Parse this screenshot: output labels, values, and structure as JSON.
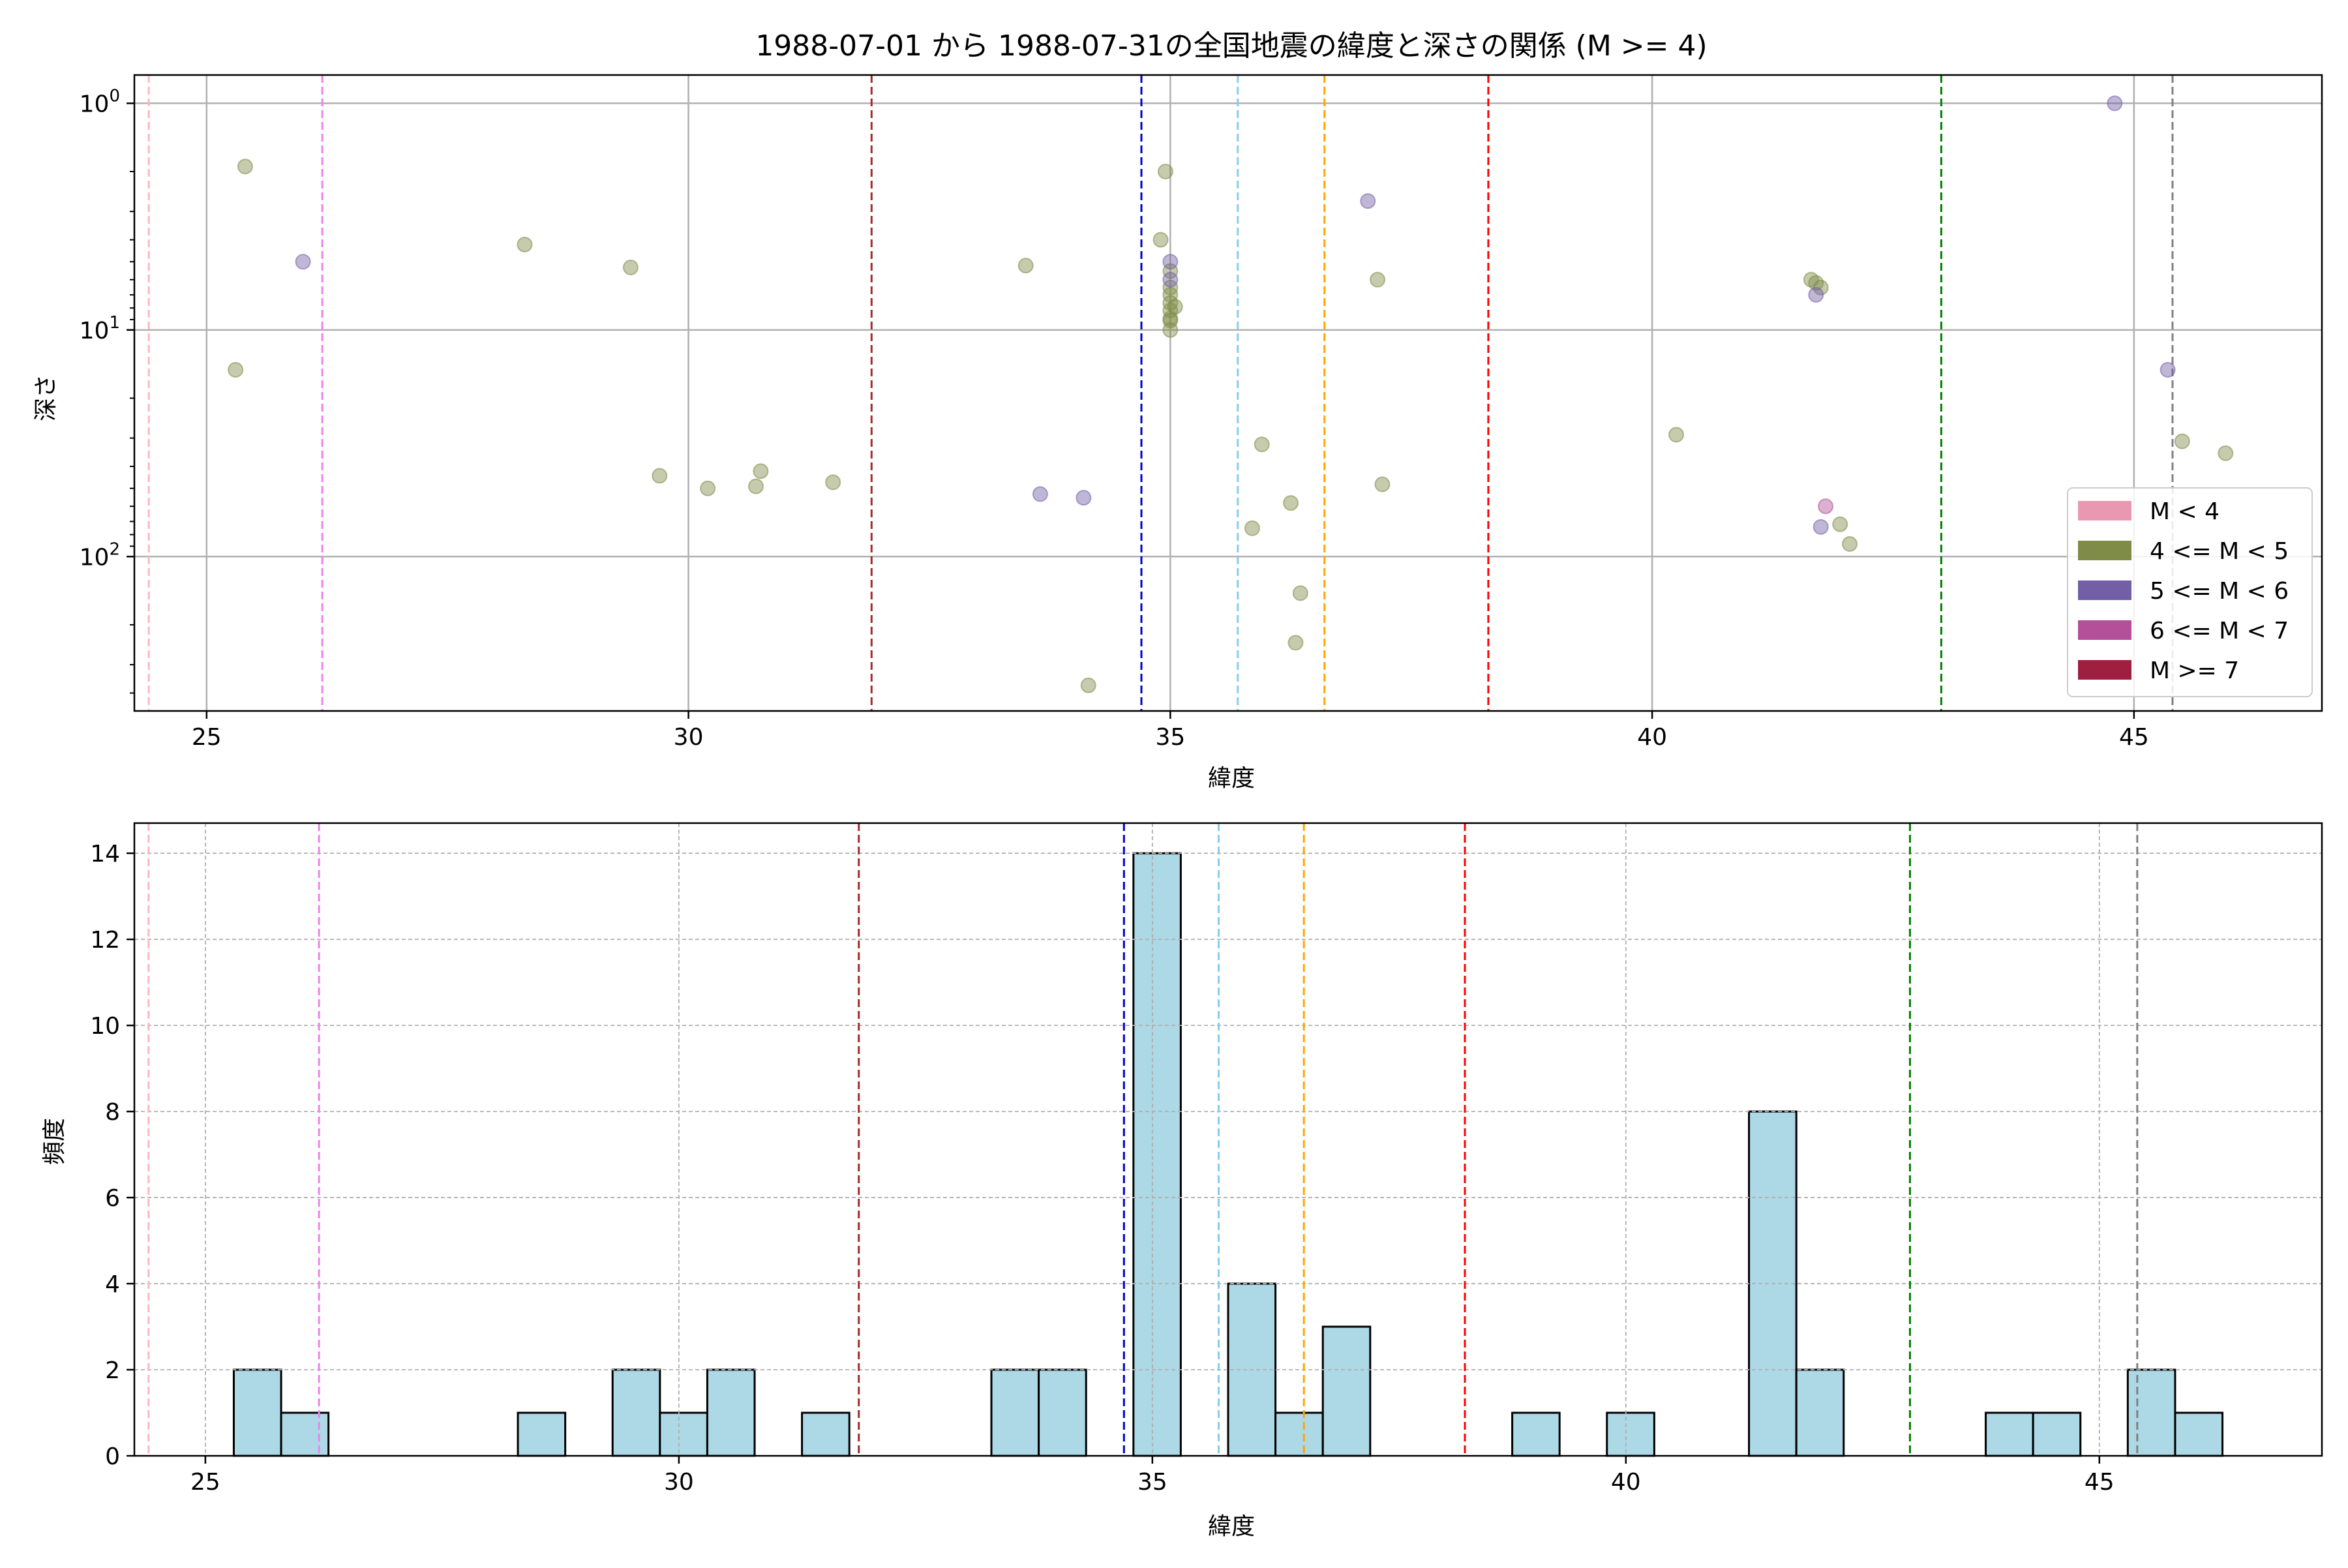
{
  "figure": {
    "title": "1988-07-01 から 1988-07-31の全国地震の緯度と深さの関係 (M >= 4)"
  },
  "legend_items": [
    {
      "label": "M < 4",
      "color": "#e899b1"
    },
    {
      "label": "4 <= M < 5",
      "color": "#7e8c48"
    },
    {
      "label": "5 <= M < 6",
      "color": "#735fa6"
    },
    {
      "label": "6 <= M < 7",
      "color": "#b44f99"
    },
    {
      "label": "M >= 7",
      "color": "#9e1f40"
    }
  ],
  "vlines": [
    {
      "x": 24.4,
      "color": "#ffb6c1"
    },
    {
      "x": 26.2,
      "color": "#ee82ee"
    },
    {
      "x": 31.9,
      "color": "#a52a2a"
    },
    {
      "x": 34.7,
      "color": "#0000cd"
    },
    {
      "x": 35.7,
      "color": "#87ceeb"
    },
    {
      "x": 36.6,
      "color": "#ffa500"
    },
    {
      "x": 38.3,
      "color": "#ff0000"
    },
    {
      "x": 43.0,
      "color": "#008000"
    },
    {
      "x": 45.4,
      "color": "#808080"
    }
  ],
  "chart_data": [
    {
      "type": "scatter",
      "title": "1988-07-01 から 1988-07-31の全国地震の緯度と深さの関係 (M >= 4)",
      "xlabel": "緯度",
      "ylabel": "深さ",
      "xlim": [
        24.25,
        46.95
      ],
      "ylim": [
        480,
        0.75
      ],
      "yscale": "log",
      "y_inverted": true,
      "xticks": [
        25,
        30,
        35,
        40,
        45
      ],
      "yticks": [
        1,
        10,
        100
      ],
      "ytick_labels": [
        "10^0",
        "10^1",
        "10^2"
      ],
      "grid": true,
      "legend_position": "lower right",
      "series": [
        {
          "name": "4 <= M < 5",
          "color": "#7e8c48",
          "points": [
            [
              25.4,
              1.9
            ],
            [
              25.3,
              15
            ],
            [
              28.3,
              4.2
            ],
            [
              29.4,
              5.3
            ],
            [
              29.7,
              44
            ],
            [
              30.2,
              50
            ],
            [
              30.7,
              49
            ],
            [
              30.75,
              42
            ],
            [
              31.5,
              47
            ],
            [
              33.5,
              5.2
            ],
            [
              34.15,
              370
            ],
            [
              34.9,
              4
            ],
            [
              34.95,
              2
            ],
            [
              35.0,
              5.5
            ],
            [
              35.0,
              6.5
            ],
            [
              35.0,
              7
            ],
            [
              35.0,
              7.6
            ],
            [
              35.0,
              8.2
            ],
            [
              35.0,
              8.9
            ],
            [
              35.05,
              7.9
            ],
            [
              35.0,
              9.1
            ],
            [
              35.0,
              10
            ],
            [
              35.85,
              75
            ],
            [
              35.95,
              32
            ],
            [
              36.25,
              58
            ],
            [
              36.3,
              240
            ],
            [
              36.35,
              145
            ],
            [
              37.15,
              6
            ],
            [
              37.2,
              48
            ],
            [
              40.25,
              29
            ],
            [
              41.65,
              6
            ],
            [
              41.7,
              6.2
            ],
            [
              41.75,
              6.5
            ],
            [
              41.95,
              72
            ],
            [
              42.05,
              88
            ],
            [
              45.5,
              31
            ],
            [
              45.95,
              35
            ]
          ]
        },
        {
          "name": "5 <= M < 6",
          "color": "#735fa6",
          "points": [
            [
              26.0,
              5
            ],
            [
              33.65,
              53
            ],
            [
              34.1,
              55
            ],
            [
              35.0,
              5
            ],
            [
              35.0,
              6
            ],
            [
              37.05,
              2.7
            ],
            [
              41.7,
              7
            ],
            [
              41.75,
              74
            ],
            [
              44.8,
              1
            ],
            [
              45.35,
              15
            ]
          ]
        },
        {
          "name": "6 <= M < 7",
          "color": "#b44f99",
          "points": [
            [
              41.8,
              60
            ]
          ]
        }
      ]
    },
    {
      "type": "bar",
      "title": "",
      "xlabel": "緯度",
      "ylabel": "頻度",
      "xlim": [
        24.25,
        47.35
      ],
      "ylim": [
        0,
        14.7
      ],
      "xticks": [
        25,
        30,
        35,
        40,
        45
      ],
      "yticks": [
        0,
        2,
        4,
        6,
        8,
        10,
        12,
        14
      ],
      "grid": true,
      "bar_color": "#add8e6",
      "bin_width": 0.5,
      "bins": [
        {
          "start": 25.3,
          "value": 2
        },
        {
          "start": 25.8,
          "value": 1
        },
        {
          "start": 28.3,
          "value": 1
        },
        {
          "start": 29.3,
          "value": 2
        },
        {
          "start": 29.8,
          "value": 1
        },
        {
          "start": 30.3,
          "value": 2
        },
        {
          "start": 31.3,
          "value": 1
        },
        {
          "start": 33.3,
          "value": 2
        },
        {
          "start": 33.8,
          "value": 2
        },
        {
          "start": 34.8,
          "value": 14
        },
        {
          "start": 35.8,
          "value": 4
        },
        {
          "start": 36.3,
          "value": 1
        },
        {
          "start": 36.8,
          "value": 3
        },
        {
          "start": 38.8,
          "value": 1
        },
        {
          "start": 39.8,
          "value": 1
        },
        {
          "start": 41.3,
          "value": 8
        },
        {
          "start": 41.8,
          "value": 2
        },
        {
          "start": 43.8,
          "value": 1
        },
        {
          "start": 44.3,
          "value": 1
        },
        {
          "start": 45.3,
          "value": 2
        },
        {
          "start": 45.8,
          "value": 1
        }
      ]
    }
  ]
}
